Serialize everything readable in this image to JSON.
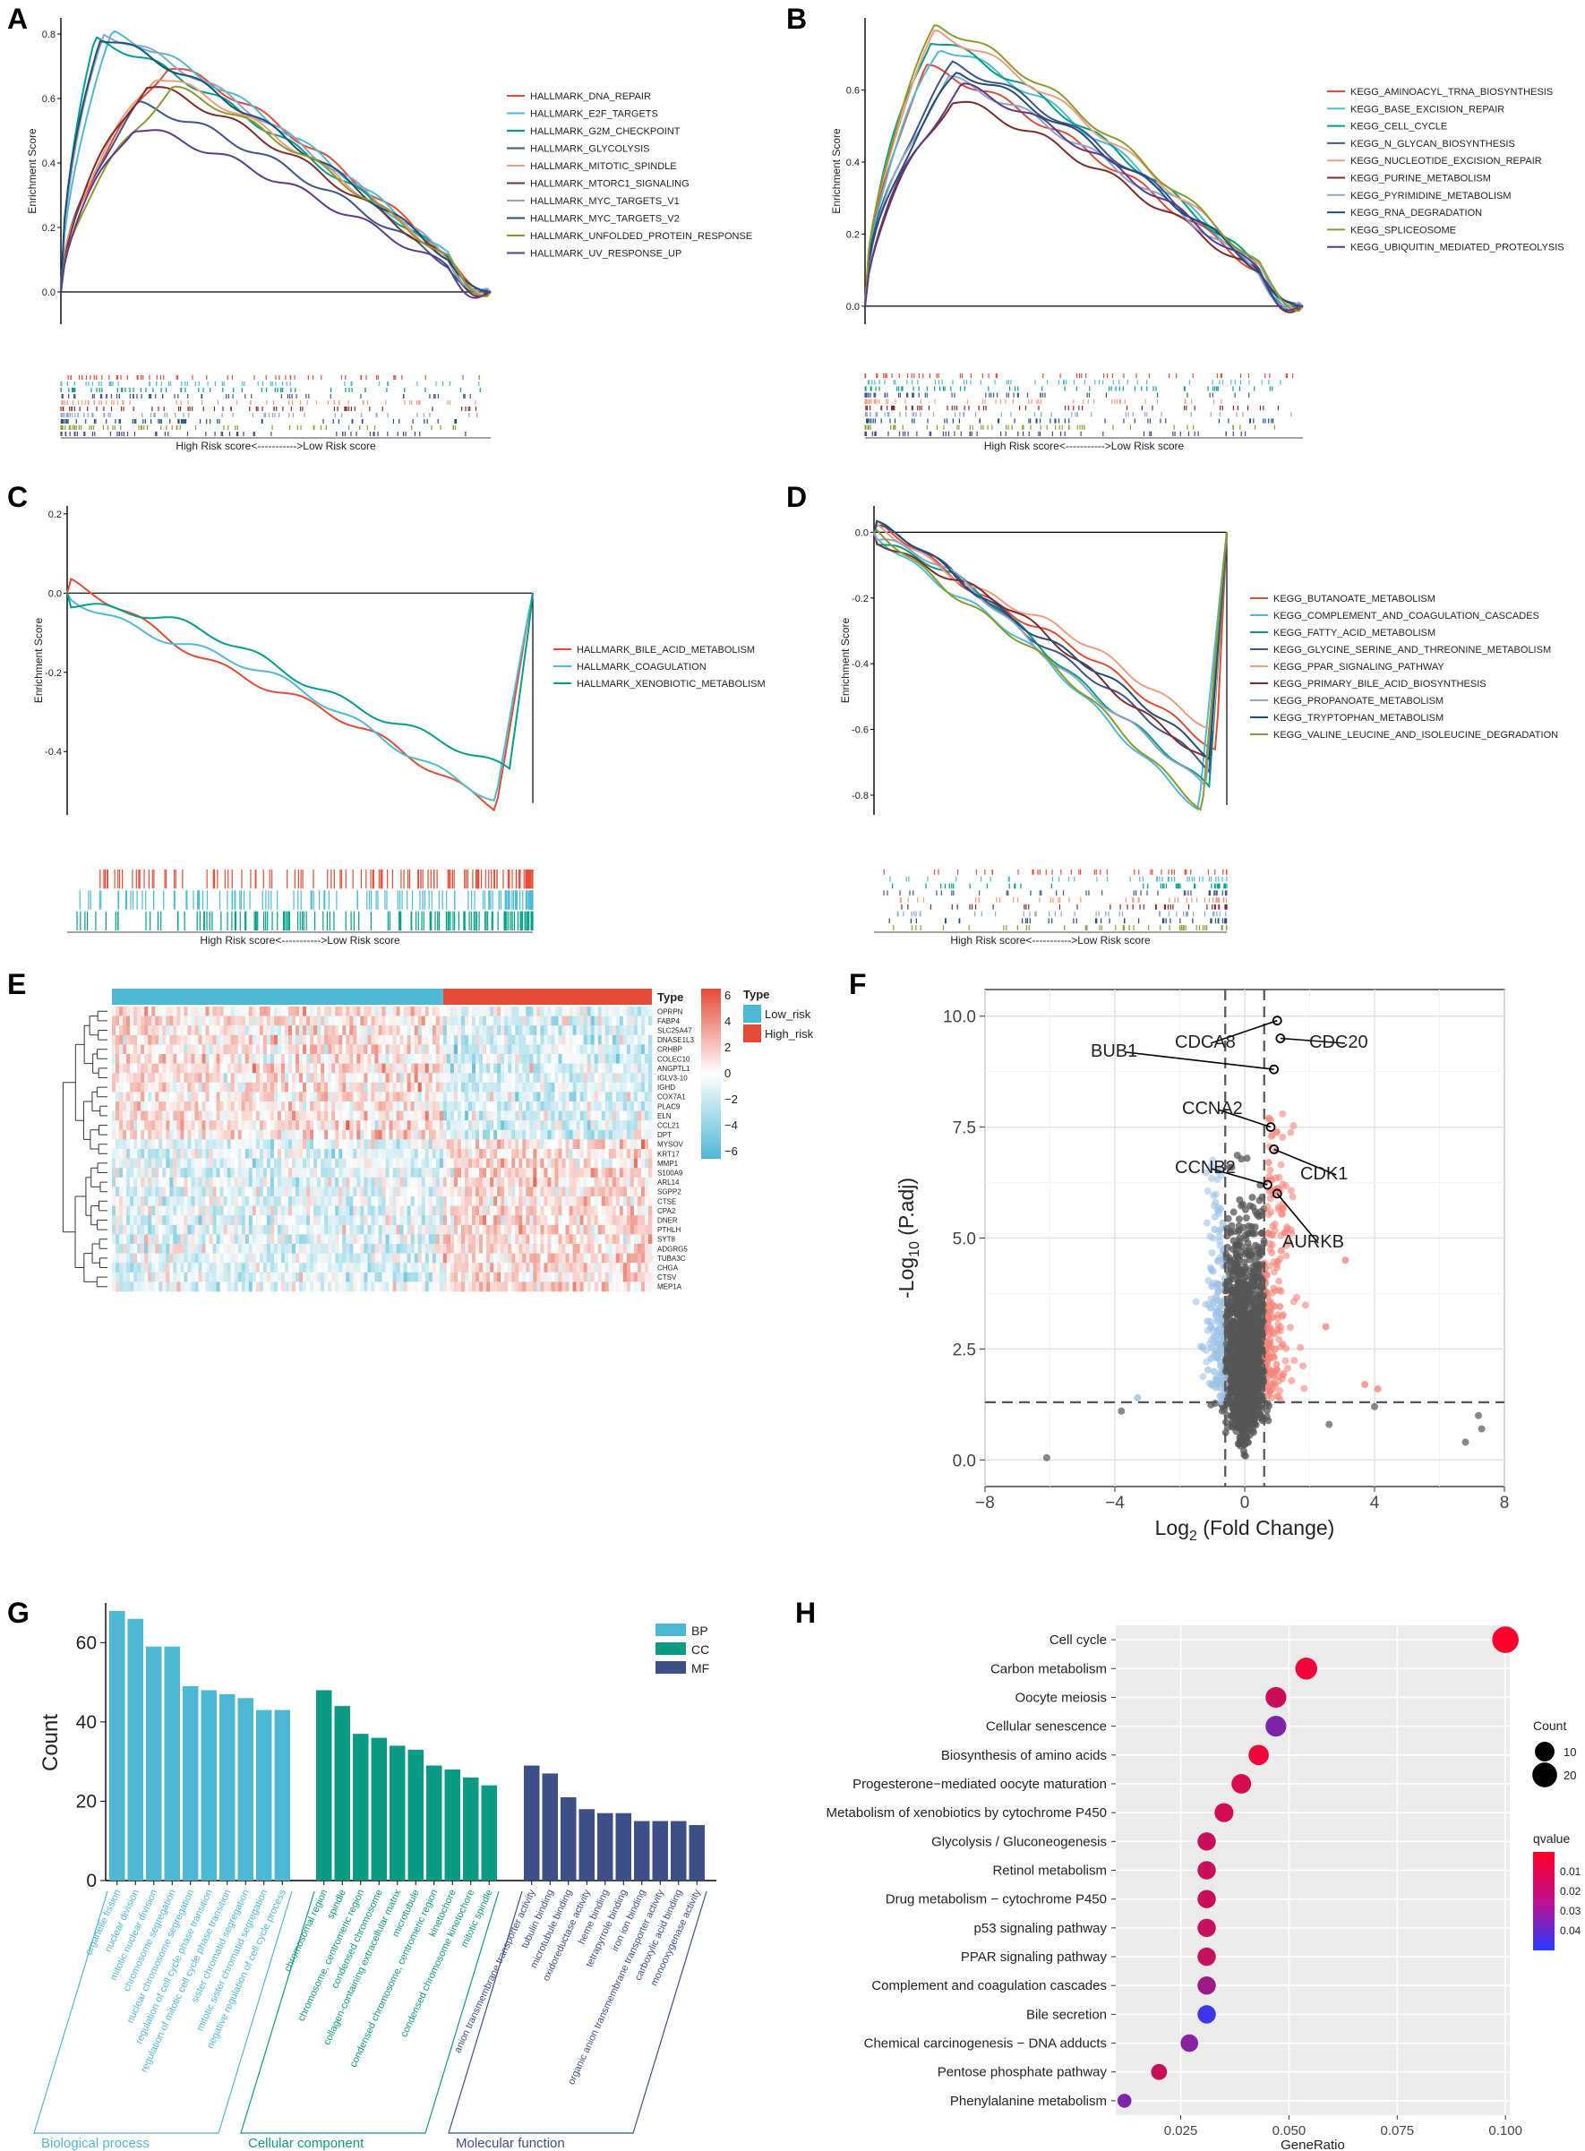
{
  "figure_title": "Multi-panel GSEA / heatmap / volcano / enrichment figure",
  "panels": {
    "A": {
      "letter": "A",
      "ylabel": "Enrichment Score",
      "rank_label": "High Risk score<----------->Low Risk score"
    },
    "B": {
      "letter": "B",
      "ylabel": "Enrichment Score",
      "rank_label": "High Risk score<----------->Low Risk score"
    },
    "C": {
      "letter": "C",
      "ylabel": "Enrichment Score",
      "rank_label": "High Risk score<----------->Low Risk score"
    },
    "D": {
      "letter": "D",
      "ylabel": "Enrichment Score",
      "rank_label": "High Risk score<----------->Low Risk score"
    },
    "E": {
      "letter": "E"
    },
    "F": {
      "letter": "F"
    },
    "G": {
      "letter": "G"
    },
    "H": {
      "letter": "H"
    }
  },
  "chart_data": [
    {
      "id": "A",
      "type": "line",
      "title": "",
      "ylabel": "Enrichment Score",
      "xlabel": "",
      "ylim": [
        -0.1,
        0.85
      ],
      "yticks": [
        0.0,
        0.2,
        0.4,
        0.6,
        0.8
      ],
      "series": [
        {
          "name": "HALLMARK_DNA_REPAIR",
          "color": "#e64b35",
          "peak": 0.7,
          "peak_pos": 0.25
        },
        {
          "name": "HALLMARK_E2F_TARGETS",
          "color": "#4dbbd5",
          "peak": 0.8,
          "peak_pos": 0.12
        },
        {
          "name": "HALLMARK_G2M_CHECKPOINT",
          "color": "#00a087",
          "peak": 0.78,
          "peak_pos": 0.08
        },
        {
          "name": "HALLMARK_GLYCOLYSIS",
          "color": "#3c5488",
          "peak": 0.58,
          "peak_pos": 0.18
        },
        {
          "name": "HALLMARK_MITOTIC_SPINDLE",
          "color": "#f39b7f",
          "peak": 0.67,
          "peak_pos": 0.22
        },
        {
          "name": "HALLMARK_MTORC1_SIGNALING",
          "color": "#7e2b2b",
          "peak": 0.64,
          "peak_pos": 0.2
        },
        {
          "name": "HALLMARK_MYC_TARGETS_V1",
          "color": "#91a3c7",
          "peak": 0.8,
          "peak_pos": 0.1
        },
        {
          "name": "HALLMARK_MYC_TARGETS_V2",
          "color": "#1f4e79",
          "peak": 0.79,
          "peak_pos": 0.09
        },
        {
          "name": "HALLMARK_UNFOLDED_PROTEIN_RESPONSE",
          "color": "#8c9a2b",
          "peak": 0.63,
          "peak_pos": 0.26
        },
        {
          "name": "HALLMARK_UV_RESPONSE_UP",
          "color": "#5b3a8c",
          "peak": 0.51,
          "peak_pos": 0.17
        }
      ]
    },
    {
      "id": "B",
      "type": "line",
      "title": "",
      "ylabel": "Enrichment Score",
      "xlabel": "",
      "ylim": [
        -0.05,
        0.8
      ],
      "yticks": [
        0.0,
        0.2,
        0.4,
        0.6
      ],
      "series": [
        {
          "name": "KEGG_AMINOACYL_TRNA_BIOSYNTHESIS",
          "color": "#e64b35",
          "peak": 0.66,
          "peak_pos": 0.14
        },
        {
          "name": "KEGG_BASE_EXCISION_REPAIR",
          "color": "#4dbbd5",
          "peak": 0.72,
          "peak_pos": 0.17
        },
        {
          "name": "KEGG_CELL_CYCLE",
          "color": "#00a087",
          "peak": 0.74,
          "peak_pos": 0.15
        },
        {
          "name": "KEGG_N_GLYCAN_BIOSYNTHESIS",
          "color": "#3c5488",
          "peak": 0.67,
          "peak_pos": 0.2
        },
        {
          "name": "KEGG_NUCLEOTIDE_EXCISION_REPAIR",
          "color": "#f39b7f",
          "peak": 0.76,
          "peak_pos": 0.16
        },
        {
          "name": "KEGG_PURINE_METABOLISM",
          "color": "#7e2b2b",
          "peak": 0.57,
          "peak_pos": 0.2
        },
        {
          "name": "KEGG_PYRIMIDINE_METABOLISM",
          "color": "#91a3c7",
          "peak": 0.63,
          "peak_pos": 0.19
        },
        {
          "name": "KEGG_RNA_DEGRADATION",
          "color": "#1f4e79",
          "peak": 0.65,
          "peak_pos": 0.21
        },
        {
          "name": "KEGG_SPLICEOSOME",
          "color": "#8c9a2b",
          "peak": 0.78,
          "peak_pos": 0.16
        },
        {
          "name": "KEGG_UBIQUITIN_MEDIATED_PROTEOLYSIS",
          "color": "#5b3a8c",
          "peak": 0.61,
          "peak_pos": 0.22
        }
      ]
    },
    {
      "id": "C",
      "type": "line",
      "title": "",
      "ylabel": "Enrichment Score",
      "xlabel": "",
      "ylim": [
        -0.56,
        0.22
      ],
      "yticks": [
        0.2,
        0.0,
        -0.2,
        -0.4
      ],
      "series": [
        {
          "name": "HALLMARK_BILE_ACID_METABOLISM",
          "color": "#e64b35",
          "trough": -0.54,
          "trough_pos": 0.92
        },
        {
          "name": "HALLMARK_COAGULATION",
          "color": "#4dbbd5",
          "trough": -0.52,
          "trough_pos": 0.92
        },
        {
          "name": "HALLMARK_XENOBIOTIC_METABOLISM",
          "color": "#00a087",
          "trough": -0.45,
          "trough_pos": 0.95
        }
      ]
    },
    {
      "id": "D",
      "type": "line",
      "title": "",
      "ylabel": "Enrichment Score",
      "xlabel": "",
      "ylim": [
        -0.86,
        0.08
      ],
      "yticks": [
        0.0,
        -0.2,
        -0.4,
        -0.6,
        -0.8
      ],
      "series": [
        {
          "name": "KEGG_BUTANOATE_METABOLISM",
          "color": "#e64b35",
          "trough": -0.66,
          "trough_pos": 0.97
        },
        {
          "name": "KEGG_COMPLEMENT_AND_COAGULATION_CASCADES",
          "color": "#4dbbd5",
          "trough": -0.84,
          "trough_pos": 0.92
        },
        {
          "name": "KEGG_FATTY_ACID_METABOLISM",
          "color": "#00a087",
          "trough": -0.78,
          "trough_pos": 0.95
        },
        {
          "name": "KEGG_GLYCINE_SERINE_AND_THREONINE_METABOLISM",
          "color": "#3c5488",
          "trough": -0.72,
          "trough_pos": 0.95
        },
        {
          "name": "KEGG_PPAR_SIGNALING_PATHWAY",
          "color": "#f39b7f",
          "trough": -0.6,
          "trough_pos": 0.96
        },
        {
          "name": "KEGG_PRIMARY_BILE_ACID_BIOSYNTHESIS",
          "color": "#7e2b2b",
          "trough": -0.7,
          "trough_pos": 0.95
        },
        {
          "name": "KEGG_PROPANOATE_METABOLISM",
          "color": "#91a3c7",
          "trough": -0.78,
          "trough_pos": 0.94
        },
        {
          "name": "KEGG_TRYPTOPHAN_METABOLISM",
          "color": "#1f4e79",
          "trough": -0.68,
          "trough_pos": 0.95
        },
        {
          "name": "KEGG_VALINE_LEUCINE_AND_ISOLEUCINE_DEGRADATION",
          "color": "#8c9a2b",
          "trough": -0.84,
          "trough_pos": 0.93
        }
      ]
    },
    {
      "id": "E",
      "type": "heatmap",
      "title": "",
      "genes": [
        "OPRPN",
        "FABP4",
        "SLC25A47",
        "DNASE1L3",
        "CRHBP",
        "COLEC10",
        "ANGPTL1",
        "IGLV3-10",
        "IGHD",
        "COX7A1",
        "PLAC9",
        "ELN",
        "CCL21",
        "DPT",
        "MYSOV",
        "KRT17",
        "MMP1",
        "S100A9",
        "ARL14",
        "SGPP2",
        "CTSE",
        "CPA2",
        "DNER",
        "PTHLH",
        "SYT8",
        "ADGRG5",
        "TUBA3C",
        "CHGA",
        "CTSV",
        "MEP1A"
      ],
      "annotation_title": "Type",
      "groups": [
        {
          "name": "Low_risk",
          "color": "#4db8d4",
          "fraction": 0.61
        },
        {
          "name": "High_risk",
          "color": "#e34b36",
          "fraction": 0.39
        }
      ],
      "color_scale": {
        "min": -6,
        "max": 6,
        "ticks": [
          6,
          4,
          2,
          0,
          -2,
          -4,
          -6
        ],
        "low": "#4db8d4",
        "mid": "#ffffff",
        "high": "#e34b36"
      }
    },
    {
      "id": "F",
      "type": "scatter",
      "title": "",
      "xlabel": "Log",
      "xlabel_sub": "2",
      "xlabel_tail": " (Fold Change)",
      "ylabel": "-Log",
      "ylabel_sub": "10",
      "ylabel_tail": " (P.adj)",
      "xlim": [
        -8,
        8
      ],
      "ylim": [
        -0.6,
        10.6
      ],
      "xticks": [
        -8,
        -4,
        0,
        4,
        8
      ],
      "yticks": [
        0.0,
        2.5,
        5.0,
        7.5,
        10.0
      ],
      "threshold_y": 1.3,
      "threshold_x": [
        -0.6,
        0.6
      ],
      "colors": {
        "down": "#9ec3e6",
        "up": "#f7847a",
        "ns": "#555555"
      },
      "labels": [
        {
          "name": "CDCA8",
          "x": 1.0,
          "y": 9.9
        },
        {
          "name": "CDC20",
          "x": 1.1,
          "y": 9.5
        },
        {
          "name": "BUB1",
          "x": 0.9,
          "y": 8.8
        },
        {
          "name": "CCNA2",
          "x": 0.8,
          "y": 7.5
        },
        {
          "name": "CDK1",
          "x": 0.9,
          "y": 7.0
        },
        {
          "name": "CCNB2",
          "x": 0.7,
          "y": 6.2
        },
        {
          "name": "AURKB",
          "x": 1.0,
          "y": 6.0
        }
      ]
    },
    {
      "id": "G",
      "type": "bar",
      "title": "",
      "ylabel": "Count",
      "ylim": [
        0,
        70
      ],
      "yticks": [
        0,
        20,
        40,
        60
      ],
      "series": [
        {
          "name": "BP",
          "color": "#4db8d4",
          "group_label": "Biological process",
          "categories": [
            "organelle fission",
            "nuclear division",
            "mitotic nuclear division",
            "chromosome segregation",
            "nuclear chromosome segregation",
            "regulation of cell cycle phase transition",
            "regulation of mitotic cell cycle phase transition",
            "sister chromatid segregation",
            "mitotic sister chromatid segregation",
            "negative regulation of cell cycle process"
          ],
          "values": [
            68,
            66,
            59,
            59,
            49,
            48,
            47,
            46,
            43,
            43
          ]
        },
        {
          "name": "CC",
          "color": "#0b9b84",
          "group_label": "Cellular component",
          "categories": [
            "chromosomal region",
            "spindle",
            "chromosome, centromeric region",
            "condensed chromosome",
            "collagen-containing extracellular matrix",
            "microtubule",
            "condensed chromosome, centromeric region",
            "kinetochore",
            "condensed chromosome kinetochore",
            "mitotic spindle"
          ],
          "values": [
            48,
            44,
            37,
            36,
            34,
            33,
            29,
            28,
            26,
            24
          ]
        },
        {
          "name": "MF",
          "color": "#3c4f86",
          "group_label": "Molecular function",
          "categories": [
            "anion transmembrane transporter activity",
            "tubulin binding",
            "microtubule binding",
            "oxidoreductase activity",
            "heme binding",
            "tetrapyrrole binding",
            "iron ion binding",
            "organic anion transmembrane transporter activity",
            "carboxylic acid binding",
            "monooxygenase activity"
          ],
          "values": [
            29,
            27,
            21,
            18,
            17,
            17,
            15,
            15,
            15,
            14
          ]
        }
      ]
    },
    {
      "id": "H",
      "type": "scatter",
      "title": "",
      "xlabel": "GeneRatio",
      "xlim": [
        0.01,
        0.101
      ],
      "xticks": [
        0.025,
        0.05,
        0.075,
        0.1
      ],
      "xtick_labels": [
        "0.025",
        "0.050",
        "0.075",
        "0.100"
      ],
      "size_legend_title": "Count",
      "size_legend": [
        10,
        20
      ],
      "color_legend_title": "qvalue",
      "color_legend_ticks": [
        "0.01",
        "0.02",
        "0.03",
        "0.04"
      ],
      "color_range": [
        0.0,
        0.05
      ],
      "points": [
        {
          "term": "Cell cycle",
          "ratio": 0.1,
          "count": 24,
          "qvalue": 0.001
        },
        {
          "term": "Carbon metabolism",
          "ratio": 0.054,
          "count": 14,
          "qvalue": 0.004
        },
        {
          "term": "Oocyte meiosis",
          "ratio": 0.047,
          "count": 12,
          "qvalue": 0.012
        },
        {
          "term": "Cellular senescence",
          "ratio": 0.047,
          "count": 12,
          "qvalue": 0.03
        },
        {
          "term": "Biosynthesis of amino acids",
          "ratio": 0.043,
          "count": 11,
          "qvalue": 0.004
        },
        {
          "term": "Progesterone−mediated oocyte maturation",
          "ratio": 0.039,
          "count": 10,
          "qvalue": 0.009
        },
        {
          "term": "Metabolism of xenobiotics by cytochrome P450",
          "ratio": 0.035,
          "count": 9,
          "qvalue": 0.01
        },
        {
          "term": "Glycolysis / Gluconeogenesis",
          "ratio": 0.031,
          "count": 8,
          "qvalue": 0.012
        },
        {
          "term": "Retinol metabolism",
          "ratio": 0.031,
          "count": 8,
          "qvalue": 0.012
        },
        {
          "term": "Drug metabolism − cytochrome P450",
          "ratio": 0.031,
          "count": 8,
          "qvalue": 0.012
        },
        {
          "term": "p53 signaling pathway",
          "ratio": 0.031,
          "count": 8,
          "qvalue": 0.013
        },
        {
          "term": "PPAR signaling pathway",
          "ratio": 0.031,
          "count": 8,
          "qvalue": 0.013
        },
        {
          "term": "Complement and coagulation cascades",
          "ratio": 0.031,
          "count": 8,
          "qvalue": 0.022
        },
        {
          "term": "Bile secretion",
          "ratio": 0.031,
          "count": 8,
          "qvalue": 0.045
        },
        {
          "term": "Chemical carcinogenesis − DNA adducts",
          "ratio": 0.027,
          "count": 7,
          "qvalue": 0.028
        },
        {
          "term": "Pentose phosphate pathway",
          "ratio": 0.02,
          "count": 5,
          "qvalue": 0.012
        },
        {
          "term": "Phenylalanine metabolism",
          "ratio": 0.012,
          "count": 3,
          "qvalue": 0.03
        }
      ]
    }
  ]
}
